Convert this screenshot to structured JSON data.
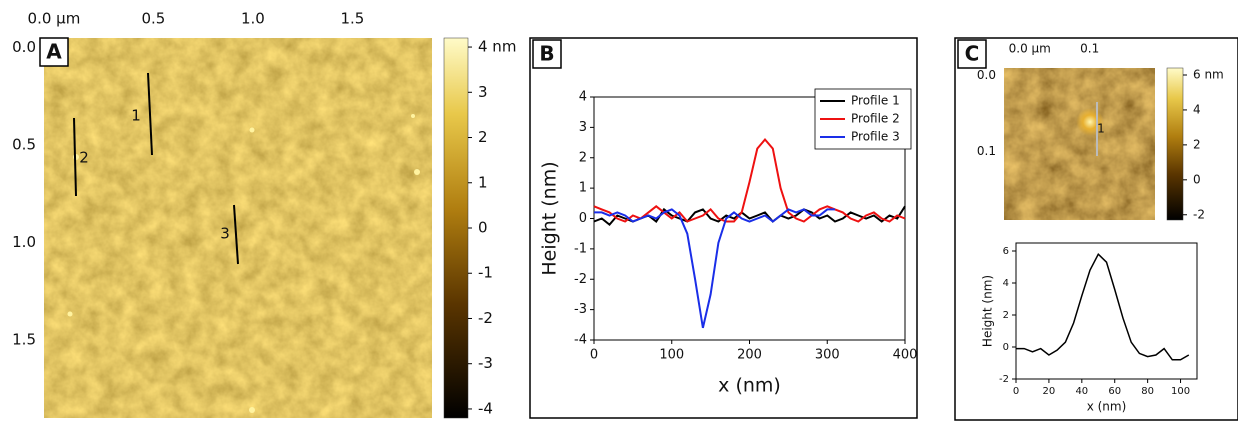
{
  "chart_data": [
    {
      "type": "image",
      "panel": "A",
      "xlim": [
        -0.05,
        1.9
      ],
      "ylim": [
        -0.05,
        1.9
      ],
      "xticks": [
        {
          "value": 0,
          "label": "0.0 µm"
        },
        0.5,
        {
          "value": 1,
          "label": "1.0"
        },
        1.5
      ],
      "yticks": [
        {
          "value": 0,
          "label": "0.0"
        },
        0.5,
        {
          "value": 1,
          "label": "1.0"
        },
        1.5
      ],
      "colorbar": {
        "lim": [
          -4.2,
          4.2
        ],
        "ticks": [
          {
            "value": 4,
            "label": "4 nm"
          },
          3,
          2,
          1,
          0,
          -1,
          -2,
          -3,
          -4
        ]
      },
      "profile_labels": [
        "1",
        "2",
        "3"
      ]
    },
    {
      "type": "line",
      "panel": "B",
      "xlabel": "x (nm)",
      "ylabel": "Height (nm)",
      "xlim": [
        0,
        400
      ],
      "ylim": [
        -4,
        4
      ],
      "xticks": [
        0,
        100,
        200,
        300,
        400
      ],
      "yticks": [
        -4,
        -3,
        -2,
        -1,
        0,
        1,
        2,
        3,
        4
      ],
      "legend": "upper right",
      "x": [
        0,
        10,
        20,
        30,
        40,
        50,
        60,
        70,
        80,
        90,
        100,
        110,
        120,
        130,
        140,
        150,
        160,
        170,
        180,
        190,
        200,
        210,
        220,
        230,
        240,
        250,
        260,
        270,
        280,
        290,
        300,
        310,
        320,
        330,
        340,
        350,
        360,
        370,
        380,
        390,
        400
      ],
      "series": [
        {
          "name": "Profile 1",
          "color": "#000000",
          "values": [
            -0.1,
            0,
            -0.2,
            0.1,
            0,
            -0.1,
            0,
            0.1,
            -0.1,
            0.3,
            0.1,
            0,
            -0.1,
            0.2,
            0.3,
            0,
            -0.1,
            0.1,
            0,
            0.2,
            0,
            0.1,
            0.2,
            -0.1,
            0.1,
            0,
            0.1,
            0.3,
            0.2,
            0,
            0.1,
            -0.1,
            0,
            0.2,
            0.1,
            0,
            0.1,
            -0.1,
            0.1,
            0,
            0.4
          ]
        },
        {
          "name": "Profile 2",
          "color": "#ee1111",
          "values": [
            0.4,
            0.3,
            0.2,
            0,
            -0.1,
            0.1,
            0,
            0.2,
            0.4,
            0.2,
            0,
            0.2,
            -0.1,
            0,
            0.1,
            0.3,
            0,
            -0.1,
            -0.1,
            0.2,
            1.2,
            2.3,
            2.6,
            2.3,
            1.0,
            0.2,
            0,
            -0.1,
            0.1,
            0.3,
            0.4,
            0.3,
            0.2,
            0,
            -0.1,
            0.1,
            0.2,
            0,
            -0.1,
            0.1,
            0
          ]
        },
        {
          "name": "Profile 3",
          "color": "#1a2ee8",
          "values": [
            0.2,
            0.2,
            0.1,
            0.2,
            0.1,
            -0.1,
            0,
            0.1,
            0,
            0.2,
            0.3,
            0.1,
            -0.5,
            -2.0,
            -3.6,
            -2.5,
            -0.8,
            0,
            0.2,
            0,
            -0.1,
            0,
            0.1,
            -0.1,
            0.1,
            0.3,
            0.2,
            0.3,
            0.1,
            0.1,
            0.3,
            0.3,
            null,
            null,
            null,
            null,
            null,
            null,
            null,
            null,
            null
          ]
        }
      ]
    },
    {
      "type": "image",
      "panel": "C",
      "xlim": [
        -0.043,
        0.209
      ],
      "ylim": [
        -0.01,
        0.19
      ],
      "xticks": [
        {
          "value": 0,
          "label": "0.0 µm"
        },
        0.1
      ],
      "yticks": [
        {
          "value": 0,
          "label": "0.0"
        },
        0.1
      ],
      "colorbar": {
        "lim": [
          -2.3,
          6.4
        ],
        "ticks": [
          {
            "value": 6,
            "label": "6 nm"
          },
          4,
          2,
          0,
          -2
        ]
      },
      "profile_labels": [
        "1"
      ]
    },
    {
      "type": "line",
      "xlabel": "x (nm)",
      "ylabel": "Height (nm)",
      "xlim": [
        0,
        110
      ],
      "ylim": [
        -2,
        6.5
      ],
      "xticks": [
        0,
        20,
        40,
        60,
        80,
        100
      ],
      "yticks": [
        -2,
        0,
        2,
        4,
        6
      ],
      "x": [
        0,
        5,
        10,
        15,
        20,
        25,
        30,
        35,
        40,
        45,
        50,
        55,
        60,
        65,
        70,
        75,
        80,
        85,
        90,
        95,
        100,
        105
      ],
      "series": [
        {
          "color": "#000000",
          "values": [
            -0.1,
            -0.1,
            -0.3,
            -0.1,
            -0.5,
            -0.2,
            0.3,
            1.5,
            3.2,
            4.8,
            5.8,
            5.3,
            3.6,
            1.8,
            0.3,
            -0.4,
            -0.6,
            -0.5,
            -0.1,
            -0.8,
            -0.8,
            -0.5
          ]
        }
      ]
    }
  ]
}
